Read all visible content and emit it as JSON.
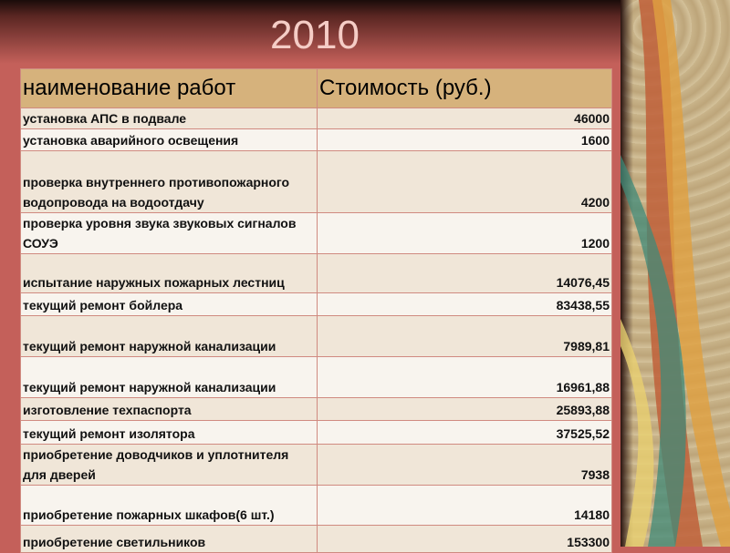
{
  "title": "2010",
  "table": {
    "headers": [
      "наименование работ",
      "Стоимость (руб.)"
    ],
    "rows": [
      {
        "name": "установка АПС в подвале",
        "cost": "46000"
      },
      {
        "name": "установка аварийного освещения",
        "cost": "1600"
      },
      {
        "name": "проверка внутреннего противопожарного водопровода на водоотдачу",
        "cost": "4200"
      },
      {
        "name": "проверка уровня звука звуковых сигналов СОУЭ",
        "cost": "1200"
      },
      {
        "name": "испытание наружных пожарных лестниц",
        "cost": "14076,45"
      },
      {
        "name": "текущий ремонт бойлера",
        "cost": "83438,55"
      },
      {
        "name": "текущий ремонт наружной канализации",
        "cost": "7989,81"
      },
      {
        "name": "текущий ремонт наружной канализации",
        "cost": "16961,88"
      },
      {
        "name": "изготовление техпаспорта",
        "cost": "25893,88"
      },
      {
        "name": "текущий ремонт изолятора",
        "cost": "37525,52"
      },
      {
        "name": "приобретение доводчиков и уплотнителя для дверей",
        "cost": "7938"
      },
      {
        "name": "приобретение пожарных шкафов(6 шт.)",
        "cost": "14180"
      },
      {
        "name": "приобретение светильников",
        "cost": "153300"
      }
    ]
  },
  "colors": {
    "background": "#c4605a",
    "header": "#d6b27c",
    "row_odd": "#f0e6d8",
    "row_even": "#f8f4ee",
    "title": "#f5cdc6"
  }
}
